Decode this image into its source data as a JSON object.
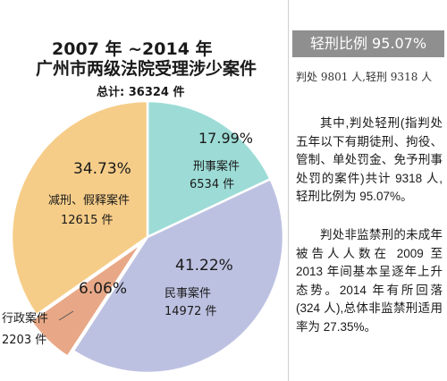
{
  "chart_data": {
    "type": "pie",
    "title_line1": "2007 年 ~2014 年",
    "title_line2": "广州市两级法院受理涉少案件",
    "total": "总计: 36324 件",
    "slices": [
      {
        "name": "刑事案件",
        "percent_label": "17.99%",
        "count_label": "6534 件",
        "value": 17.99,
        "color": "#9ddcd6"
      },
      {
        "name": "民事案件",
        "percent_label": "41.22%",
        "count_label": "14972 件",
        "value": 41.22,
        "color": "#bdc1e1"
      },
      {
        "name": "行政案件",
        "percent_label": "6.06%",
        "count_label": "2203 件",
        "value": 6.06,
        "color": "#e8a887"
      },
      {
        "name": "减刑、假释案件",
        "percent_label": "34.73%",
        "count_label": "12615 件",
        "value": 34.73,
        "color": "#f6cd88"
      }
    ]
  },
  "sidebar": {
    "banner": "轻刑比例 95.07%",
    "lead": "判处 9801 人,轻刑 9318 人",
    "paragraph1": "其中,判处轻刑(指判处五年以下有期徒刑、拘役、管制、单处罚金、免予刑事处罚的案件)共计 9318 人,轻刑比例为 95.07%。",
    "paragraph2": "判处非监禁刑的未成年被告人人数在 2009 至 2013 年间基本呈逐年上升态势。2014 年有所回落(324 人),总体非监禁刑适用率为 27.35%。"
  }
}
